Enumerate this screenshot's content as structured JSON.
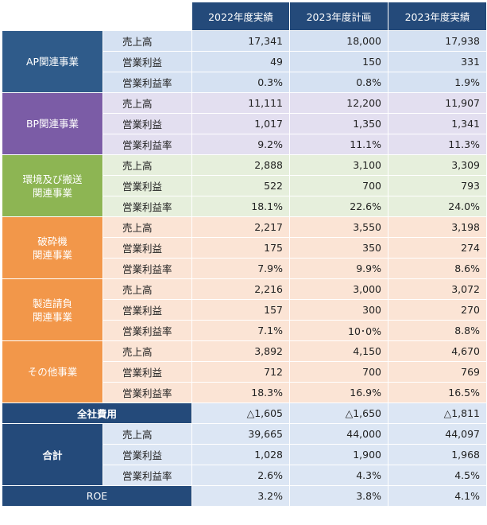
{
  "columns": [
    "2022年度実績",
    "2023年度計画",
    "2023年度実績"
  ],
  "colors": {
    "header": "#244a7a",
    "AP": {
      "label": "#2f5b8a",
      "row": "#d5e1f2"
    },
    "BP": {
      "label": "#7b5ca6",
      "row": "#e3dff0"
    },
    "ENV": {
      "label": "#8db553",
      "row": "#e6efdc"
    },
    "ORANGE": {
      "label": "#f2974a",
      "row": "#fbe4d5"
    },
    "total_row": "#dce6f4"
  },
  "segments": [
    {
      "name": "AP関連事業",
      "theme": "AP",
      "rows": [
        {
          "metric": "売上高",
          "values": [
            "17,341",
            "18,000",
            "17,938"
          ]
        },
        {
          "metric": "営業利益",
          "values": [
            "49",
            "150",
            "331"
          ]
        },
        {
          "metric": "営業利益率",
          "values": [
            "0.3%",
            "0.8%",
            "1.9%"
          ]
        }
      ]
    },
    {
      "name": "BP関連事業",
      "theme": "BP",
      "rows": [
        {
          "metric": "売上高",
          "values": [
            "11,111",
            "12,200",
            "11,907"
          ]
        },
        {
          "metric": "営業利益",
          "values": [
            "1,017",
            "1,350",
            "1,341"
          ]
        },
        {
          "metric": "営業利益率",
          "values": [
            "9.2%",
            "11.1%",
            "11.3%"
          ]
        }
      ]
    },
    {
      "name": "環境及び搬送\n関連事業",
      "theme": "ENV",
      "rows": [
        {
          "metric": "売上高",
          "values": [
            "2,888",
            "3,100",
            "3,309"
          ]
        },
        {
          "metric": "営業利益",
          "values": [
            "522",
            "700",
            "793"
          ]
        },
        {
          "metric": "営業利益率",
          "values": [
            "18.1%",
            "22.6%",
            "24.0%"
          ]
        }
      ]
    },
    {
      "name": "破砕機\n関連事業",
      "theme": "ORANGE",
      "rows": [
        {
          "metric": "売上高",
          "values": [
            "2,217",
            "3,550",
            "3,198"
          ]
        },
        {
          "metric": "営業利益",
          "values": [
            "175",
            "350",
            "274"
          ]
        },
        {
          "metric": "営業利益率",
          "values": [
            "7.9%",
            "9.9%",
            "8.6%"
          ]
        }
      ]
    },
    {
      "name": "製造請負\n関連事業",
      "theme": "ORANGE",
      "rows": [
        {
          "metric": "売上高",
          "values": [
            "2,216",
            "3,000",
            "3,072"
          ]
        },
        {
          "metric": "営業利益",
          "values": [
            "157",
            "300",
            "270"
          ]
        },
        {
          "metric": "営業利益率",
          "values": [
            "7.1%",
            "10･0%",
            "8.8%"
          ]
        }
      ]
    },
    {
      "name": "その他事業",
      "theme": "ORANGE",
      "rows": [
        {
          "metric": "売上高",
          "values": [
            "3,892",
            "4,150",
            "4,670"
          ]
        },
        {
          "metric": "営業利益",
          "values": [
            "712",
            "700",
            "769"
          ]
        },
        {
          "metric": "営業利益率",
          "values": [
            "18.3%",
            "16.9%",
            "16.5%"
          ]
        }
      ]
    }
  ],
  "corporate_expenses": {
    "label": "全社費用",
    "values": [
      "△1,605",
      "△1,650",
      "△1,811"
    ]
  },
  "total": {
    "label": "合計",
    "rows": [
      {
        "metric": "売上高",
        "values": [
          "39,665",
          "44,000",
          "44,097"
        ]
      },
      {
        "metric": "営業利益",
        "values": [
          "1,028",
          "1,900",
          "1,968"
        ]
      },
      {
        "metric": "営業利益率",
        "values": [
          "2.6%",
          "4.3%",
          "4.5%"
        ]
      }
    ]
  },
  "roe": {
    "label": "ROE",
    "values": [
      "3.2%",
      "3.8%",
      "4.1%"
    ]
  }
}
